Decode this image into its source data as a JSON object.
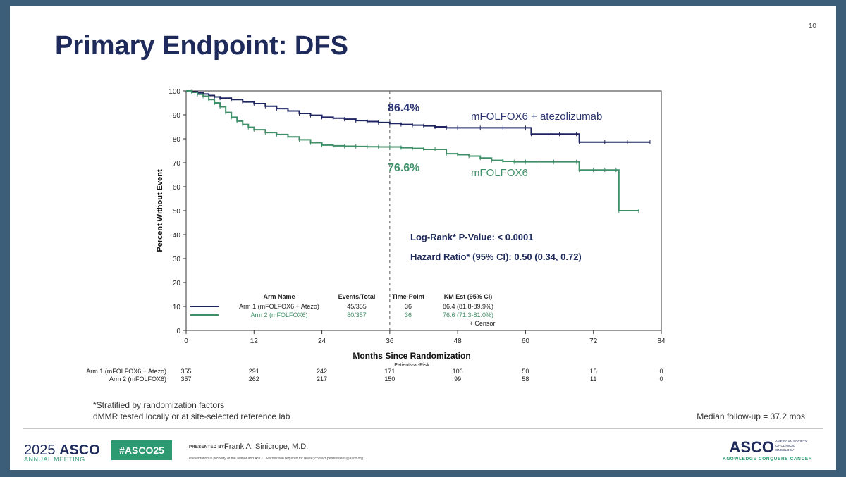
{
  "slide": {
    "title": "Primary Endpoint: DFS",
    "number": "10"
  },
  "chart_data": {
    "type": "line",
    "subtype": "kaplan-meier",
    "xlabel": "Months Since Randomization",
    "ylabel": "Percent Without Event",
    "xlim": [
      0,
      84
    ],
    "ylim": [
      0,
      100
    ],
    "x_ticks": [
      "0",
      "12",
      "24",
      "36",
      "48",
      "60",
      "72",
      "84"
    ],
    "y_ticks": [
      "0",
      "10",
      "20",
      "30",
      "40",
      "50",
      "60",
      "70",
      "80",
      "90",
      "100"
    ],
    "timepoint_line": 36,
    "series": [
      {
        "name": "mFOLFOX6 + atezolizumab",
        "color": "#1e2460",
        "points": [
          [
            0,
            100
          ],
          [
            1,
            99.6
          ],
          [
            2,
            99.2
          ],
          [
            3,
            98.7
          ],
          [
            4,
            98.1
          ],
          [
            5,
            97.5
          ],
          [
            6,
            97.0
          ],
          [
            8,
            96.4
          ],
          [
            10,
            95.4
          ],
          [
            12,
            94.7
          ],
          [
            14,
            93.6
          ],
          [
            16,
            92.6
          ],
          [
            18,
            91.6
          ],
          [
            20,
            90.6
          ],
          [
            22,
            89.8
          ],
          [
            24,
            89.0
          ],
          [
            26,
            88.6
          ],
          [
            28,
            88.2
          ],
          [
            30,
            87.6
          ],
          [
            32,
            87.2
          ],
          [
            34,
            86.8
          ],
          [
            36,
            86.4
          ],
          [
            38,
            86.0
          ],
          [
            40,
            85.7
          ],
          [
            42,
            85.4
          ],
          [
            44,
            85.0
          ],
          [
            46,
            84.6
          ],
          [
            48,
            84.6
          ],
          [
            52,
            84.6
          ],
          [
            56,
            84.6
          ],
          [
            60,
            84.6
          ],
          [
            61,
            82.0
          ],
          [
            64,
            82.0
          ],
          [
            66,
            82.0
          ],
          [
            69,
            82.0
          ],
          [
            69.5,
            78.6
          ],
          [
            74,
            78.6
          ],
          [
            78,
            78.6
          ],
          [
            82,
            78.6
          ]
        ]
      },
      {
        "name": "mFOLFOX6",
        "color": "#3f8f68",
        "points": [
          [
            0,
            100
          ],
          [
            1,
            99.4
          ],
          [
            2,
            98.6
          ],
          [
            3,
            97.8
          ],
          [
            4,
            96.4
          ],
          [
            5,
            95.0
          ],
          [
            6,
            93.4
          ],
          [
            7,
            91.0
          ],
          [
            8,
            89.0
          ],
          [
            9,
            87.4
          ],
          [
            10,
            86.0
          ],
          [
            11,
            84.8
          ],
          [
            12,
            83.8
          ],
          [
            14,
            82.6
          ],
          [
            16,
            81.8
          ],
          [
            18,
            80.8
          ],
          [
            20,
            79.6
          ],
          [
            22,
            78.4
          ],
          [
            24,
            77.4
          ],
          [
            26,
            77.1
          ],
          [
            28,
            76.9
          ],
          [
            30,
            76.8
          ],
          [
            32,
            76.7
          ],
          [
            34,
            76.6
          ],
          [
            36,
            76.6
          ],
          [
            38,
            76.3
          ],
          [
            40,
            76.0
          ],
          [
            42,
            75.6
          ],
          [
            44,
            75.6
          ],
          [
            46,
            73.8
          ],
          [
            48,
            73.4
          ],
          [
            50,
            72.8
          ],
          [
            52,
            72.0
          ],
          [
            54,
            71.0
          ],
          [
            56,
            70.6
          ],
          [
            58,
            70.4
          ],
          [
            60,
            70.4
          ],
          [
            62,
            70.4
          ],
          [
            65,
            70.4
          ],
          [
            69,
            70.4
          ],
          [
            69.5,
            67.0
          ],
          [
            72,
            67.0
          ],
          [
            74,
            67.0
          ],
          [
            76,
            67.0
          ],
          [
            76.5,
            50.0
          ],
          [
            80,
            50.0
          ]
        ]
      }
    ],
    "annotations": {
      "arm1_est": "86.4%",
      "arm2_est": "76.6%",
      "arm1_label": "mFOLFOX6 + atezolizumab",
      "arm2_label": "mFOLFOX6",
      "logrank": "Log-Rank* P-Value: < 0.0001",
      "hazard": "Hazard Ratio* (95% CI): 0.50 (0.34, 0.72)"
    },
    "legend_table": {
      "headers": [
        "Arm Name",
        "Events/Total",
        "Time-Point",
        "KM Est (95% CI)"
      ],
      "rows": [
        {
          "arm": "Arm 1 (mFOLFOX6 + Atezo)",
          "events": "45/355",
          "time": "36",
          "km": "86.4 (81.8-89.9%)"
        },
        {
          "arm": "Arm 2 (mFOLFOX6)",
          "events": "80/357",
          "time": "36",
          "km": "76.6 (71.3-81.0%)"
        }
      ],
      "censor_label": "+ Censor"
    },
    "at_risk": {
      "label": "Patients-at-Risk",
      "rows": [
        {
          "arm": "Arm 1 (mFOLFOX6 + Atezo)",
          "values": [
            "355",
            "291",
            "242",
            "171",
            "106",
            "50",
            "15",
            "0"
          ]
        },
        {
          "arm": "Arm 2 (mFOLFOX6)",
          "values": [
            "357",
            "262",
            "217",
            "150",
            "99",
            "58",
            "11",
            "0"
          ]
        }
      ]
    }
  },
  "notes": {
    "stratified": "*Stratified by randomization factors",
    "dmmr": "dMMR tested locally or at site-selected reference lab",
    "followup": "Median follow-up = 37.2 mos"
  },
  "footer": {
    "year": "2025",
    "asco": "ASCO",
    "meeting": "ANNUAL MEETING",
    "hashtag": "#ASCO25",
    "presented_by": "PRESENTED BY:",
    "presenter": "Frank A. Sinicrope, M.D.",
    "disclaimer": "Presentation is property of the author and ASCO. Permission required for reuse; contact permissions@asco.org",
    "logo": "ASCO",
    "society": "AMERICAN SOCIETY OF CLINICAL ONCOLOGY",
    "tagline": "KNOWLEDGE CONQUERS CANCER"
  }
}
